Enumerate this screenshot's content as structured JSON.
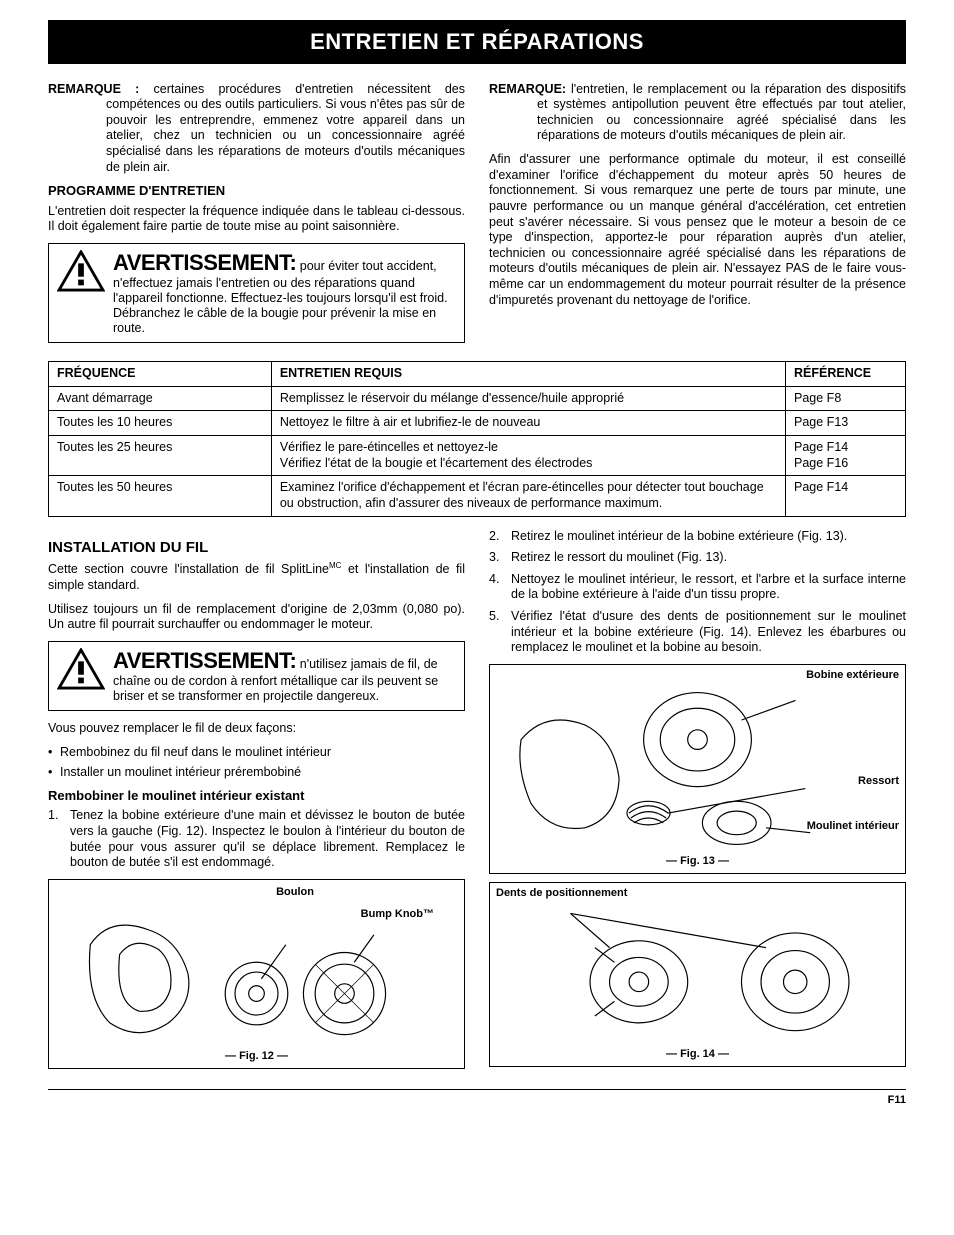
{
  "page": {
    "title": "ENTRETIEN ET RÉPARATIONS",
    "footer": "F11"
  },
  "top_left": {
    "remarque_label": "REMARQUE :",
    "remarque_text": "certaines procédures d'entretien nécessitent des compétences ou des outils particuliers. Si vous n'êtes pas sûr de pouvoir les entreprendre, emmenez votre appareil dans un atelier, chez un technicien ou un concessionnaire agréé spécialisé dans les réparations de moteurs d'outils mécaniques de plein air.",
    "programme_heading": "PROGRAMME D'ENTRETIEN",
    "programme_text": "L'entretien doit respecter la fréquence indiquée dans le tableau ci-dessous. Il doit également faire partie de toute mise au point saisonnière.",
    "warning_title": "AVERTISSEMENT:",
    "warning_text": "pour éviter tout accident, n'effectuez jamais l'entretien ou des réparations quand l'appareil fonctionne. Effectuez-les toujours lorsqu'il est froid. Débranchez le câble de la bougie pour prévenir la mise en route."
  },
  "top_right": {
    "remarque_label": "REMARQUE:",
    "remarque_text": "l'entretien, le remplacement ou la réparation des dispositifs et systèmes antipollution peuvent être effectués par tout atelier, technicien ou concessionnaire agréé spécialisé dans les réparations de moteurs d'outils mécaniques de plein air.",
    "para2": "Afin d'assurer une performance optimale du moteur, il est conseillé d'examiner l'orifice d'échappement du moteur après 50 heures de fonctionnement. Si vous remarquez une perte de tours par minute, une pauvre performance ou un manque général d'accélération, cet entretien peut s'avérer nécessaire. Si vous pensez que le moteur a besoin de ce type d'inspection, apportez-le pour réparation auprès d'un atelier, technicien ou concessionnaire agréé spécialisé dans les réparations de moteurs d'outils mécaniques de plein air. N'essayez PAS de le faire vous-même car un endommagement du moteur pourrait résulter de la présence d'impuretés provenant du nettoyage de l'orifice."
  },
  "table": {
    "headers": [
      "FRÉQUENCE",
      "ENTRETIEN REQUIS",
      "RÉFÉRENCE"
    ],
    "col_widths": [
      "26%",
      "60%",
      "14%"
    ],
    "rows": [
      [
        "Avant démarrage",
        "Remplissez le réservoir du mélange d'essence/huile approprié",
        "Page F8"
      ],
      [
        "Toutes les 10 heures",
        "Nettoyez le filtre à air et lubrifiez-le de nouveau",
        "Page F13"
      ],
      [
        "Toutes les 25 heures",
        "Vérifiez le pare-étincelles et nettoyez-le\nVérifiez l'état de la bougie et l'écartement des électrodes",
        "Page F14\nPage F16"
      ],
      [
        "Toutes les 50 heures",
        "Examinez l'orifice d'échappement et l'écran pare-étincelles pour détecter tout bouchage ou obstruction, afin d'assurer des niveaux de performance maximum.",
        "Page F14"
      ]
    ]
  },
  "bottom_left": {
    "heading": "INSTALLATION DU FIL",
    "p1a": "Cette section couvre l'installation de fil SplitLine",
    "p1sup": "MC",
    "p1b": " et l'installation de fil simple standard.",
    "p2": "Utilisez toujours un fil de remplacement d'origine de 2,03mm (0,080 po). Un autre fil pourrait surchauffer ou endommager le moteur.",
    "warning_title": "AVERTISSEMENT:",
    "warning_text": "n'utilisez jamais de fil, de chaîne ou de cordon à renfort métallique car ils peuvent se briser et se transformer en projectile dangereux.",
    "p3": "Vous pouvez remplacer le fil de deux façons:",
    "bullets": [
      "Rembobinez du fil neuf dans le moulinet intérieur",
      "Installer un moulinet intérieur prérembobiné"
    ],
    "subheading": "Rembobiner le moulinet intérieur existant",
    "step1": "Tenez la bobine extérieure d'une main et dévissez le bouton de butée vers la gauche (Fig. 12). Inspectez le boulon à l'intérieur du bouton de butée pour vous assurer qu'il se déplace librement. Remplacez le bouton de butée s'il est endommagé.",
    "fig12": {
      "label": "Fig. 12",
      "callout_boulon": "Boulon",
      "callout_bump": "Bump Knob™"
    }
  },
  "bottom_right": {
    "steps": [
      "Retirez le moulinet intérieur de la bobine extérieure (Fig. 13).",
      "Retirez le ressort du moulinet (Fig. 13).",
      "Nettoyez le moulinet intérieur, le ressort, et l'arbre et la surface interne de la bobine extérieure à l'aide d'un tissu propre.",
      "Vérifiez l'état d'usure des dents de positionnement sur le moulinet intérieur et la bobine extérieure (Fig. 14). Enlevez les ébarbures ou remplacez le moulinet et la bobine au besoin."
    ],
    "fig13": {
      "label": "Fig. 13",
      "callout_bobine": "Bobine extérieure",
      "callout_ressort": "Ressort",
      "callout_moulinet": "Moulinet intérieur"
    },
    "fig14": {
      "label": "Fig. 14",
      "callout_dents": "Dents de positionnement"
    }
  },
  "colors": {
    "black": "#000000",
    "white": "#ffffff"
  }
}
